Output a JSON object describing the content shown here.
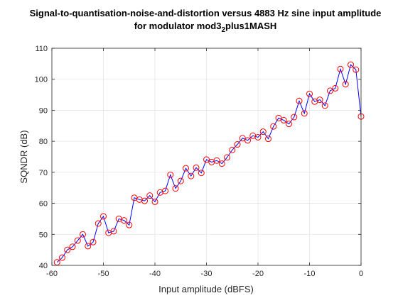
{
  "chart_data": {
    "type": "line",
    "title_line1": "Signal-to-quantisation-noise-and-distortion versus 4883 Hz sine input amplitude",
    "title_line2_prefix": "for modulator mod3",
    "title_line2_subscript": "2",
    "title_line2_suffix": "plus1MASH",
    "xlabel": "Input amplitude (dBFS)",
    "ylabel": "SQNDR (dB)",
    "xlim": [
      -60,
      0
    ],
    "ylim": [
      40,
      110
    ],
    "xticks": [
      -60,
      -50,
      -40,
      -30,
      -20,
      -10,
      0
    ],
    "yticks": [
      40,
      50,
      60,
      70,
      80,
      90,
      100,
      110
    ],
    "grid": true,
    "colors": {
      "line": "#0000ff",
      "marker": "#ff0000",
      "grid": "#e5e5e5",
      "axis": "#262626"
    },
    "series": [
      {
        "x": [
          -59,
          -58,
          -57,
          -56,
          -55,
          -54,
          -53,
          -52,
          -51,
          -50,
          -49,
          -48,
          -47,
          -46,
          -45,
          -44,
          -43,
          -42,
          -41,
          -40,
          -39,
          -38,
          -37,
          -36,
          -35,
          -34,
          -33,
          -32,
          -31,
          -30,
          -29,
          -28,
          -27,
          -26,
          -25,
          -24,
          -23,
          -22,
          -21,
          -20,
          -19,
          -18,
          -17,
          -16,
          -15,
          -14,
          -13,
          -12,
          -11,
          -10,
          -9,
          -8,
          -7,
          -6,
          -5,
          -4,
          -3,
          -2,
          -1,
          0
        ],
        "y": [
          41,
          42.5,
          45,
          46,
          48,
          50,
          46.2,
          47.5,
          53.5,
          55.8,
          50.5,
          51,
          55,
          54.5,
          53,
          61.8,
          61.2,
          60.8,
          62.5,
          60.5,
          63.5,
          64,
          69.2,
          64.8,
          67.2,
          71.3,
          68.8,
          71.5,
          69.8,
          74.1,
          73.3,
          73.8,
          72.8,
          74.8,
          77.2,
          79,
          81,
          80.3,
          81.8,
          81.3,
          83.1,
          80.8,
          84.8,
          87.5,
          86.8,
          85.6,
          87.8,
          93,
          89,
          95.3,
          92.8,
          93.4,
          91.5,
          96.3,
          97.1,
          103.3,
          98.4,
          104.7,
          103.1,
          88
        ]
      }
    ]
  }
}
